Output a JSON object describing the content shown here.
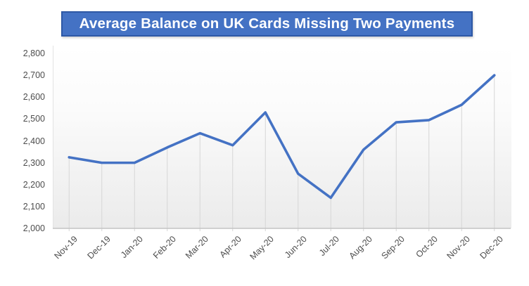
{
  "title": "Average Balance on UK Cards Missing Two Payments",
  "chart_data": {
    "type": "line",
    "title": "Average Balance on UK Cards Missing Two Payments",
    "categories": [
      "Nov-19",
      "Dec-19",
      "Jan-20",
      "Feb-20",
      "Mar-20",
      "Apr-20",
      "May-20",
      "Jun-20",
      "Jul-20",
      "Aug-20",
      "Sep-20",
      "Oct-20",
      "Nov-20",
      "Dec-20"
    ],
    "values": [
      2325,
      2300,
      2300,
      2370,
      2435,
      2380,
      2530,
      2250,
      2140,
      2360,
      2485,
      2495,
      2565,
      2700
    ],
    "xlabel": "",
    "ylabel": "",
    "ylim": [
      2000,
      2800
    ],
    "ytick_step": 100,
    "ytick_labels": [
      "2,000",
      "2,100",
      "2,200",
      "2,300",
      "2,400",
      "2,500",
      "2,600",
      "2,700",
      "2,800"
    ],
    "legend": "none",
    "grid": "vertical drop lines from each data point",
    "line_color": "#4472C4",
    "dropline_color": "#d6d6d6",
    "axis_color": "#c4c4c4",
    "label_color": "#4d4d4d",
    "title_bar": {
      "bg": "#4472C4",
      "border": "#2e58a5",
      "text_color": "#ffffff"
    }
  }
}
